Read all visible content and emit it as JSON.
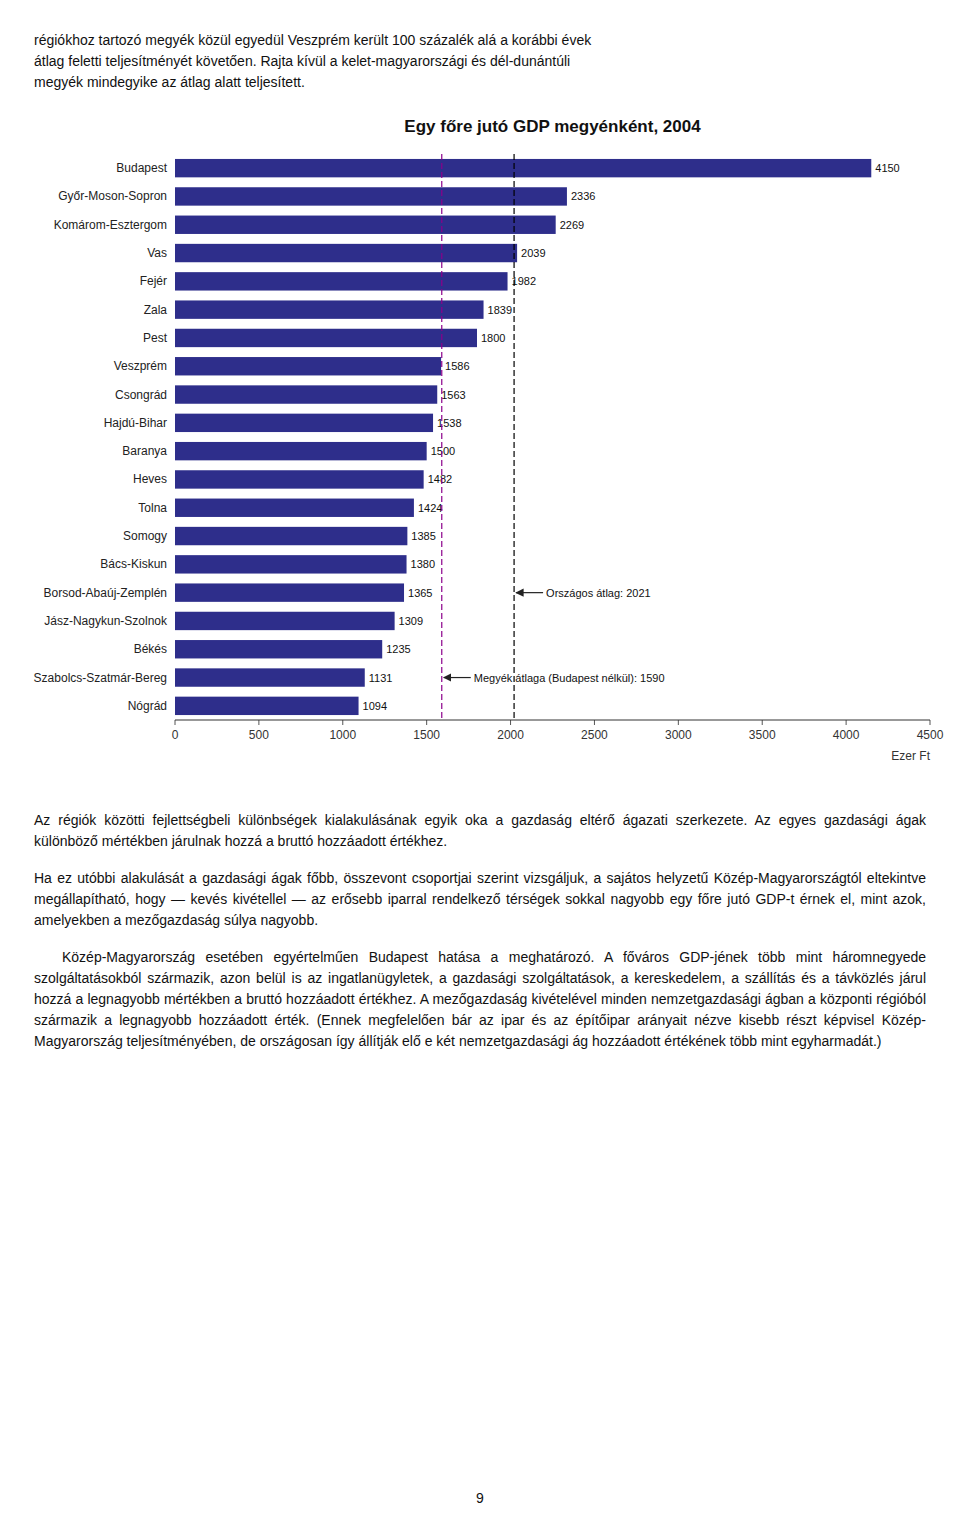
{
  "chart_data": {
    "type": "bar",
    "orientation": "horizontal",
    "title": "Egy főre jutó GDP megyénként, 2004",
    "categories": [
      "Budapest",
      "Győr-Moson-Sopron",
      "Komárom-Esztergom",
      "Vas",
      "Fejér",
      "Zala",
      "Pest",
      "Veszprém",
      "Csongrád",
      "Hajdú-Bihar",
      "Baranya",
      "Heves",
      "Tolna",
      "Somogy",
      "Bács-Kiskun",
      "Borsod-Abaúj-Zemplén",
      "Jász-Nagykun-Szolnok",
      "Békés",
      "Szabolcs-Szatmár-Bereg",
      "Nógrád"
    ],
    "values": [
      4150,
      2336,
      2269,
      2039,
      1982,
      1839,
      1800,
      1586,
      1563,
      1538,
      1500,
      1482,
      1424,
      1385,
      1380,
      1365,
      1309,
      1235,
      1131,
      1094
    ],
    "color": "#2E2E8B",
    "data_labels": true,
    "grid": false,
    "xlabel": "Ezer Ft",
    "xlim": [
      0,
      4500
    ],
    "xticks": [
      0,
      500,
      1000,
      1500,
      2000,
      2500,
      3000,
      3500,
      4000,
      4500
    ],
    "annotations": [
      {
        "text": "Országos átlag: 2021",
        "x": 2021,
        "category": "Borsod-Abaúj-Zemplén",
        "color": "#000000"
      },
      {
        "text": "Megyék átlaga (Budapest nélkül): 1590",
        "x": 1590,
        "category": "Szabolcs-Szatmár-Bereg",
        "color": "#8B008B"
      }
    ]
  },
  "top_text": "régiókhoz tartozó megyék közül egyedül Veszprém került 100 százalék alá a korábbi évek\nátlag feletti teljesítményét követően. Rajta kívül a kelet-magyarországi és dél-dunántúli\nmegyék mindegyike az átlag alatt teljesített.",
  "bottom_text_paragraphs": [
    "Az régiók közötti fejlettségbeli különbségek kialakulásának egyik oka a gazdaság eltérő ágazati szerkezete. Az egyes gazdasági ágak különböző mértékben járulnak hozzá a bruttó hozzáadott értékhez.",
    "Ha ez utóbbi alakulását a gazdasági ágak főbb, összevont csoportjai szerint vizsgáljuk, a sajátos helyzetű Közép-Magyarországtól eltekintve megállapítható, hogy — kevés kivétellel — az erősebb iparral rendelkező térségek sokkal nagyobb egy főre jutó GDP-t érnek el, mint azok, amelyekben a mezőgazdaság súlya nagyobb.",
    "Közép-Magyarország esetében egyértelműen Budapest hatása a meghatározó. A főváros GDP-jének több mint háromnegyede szolgáltatásokból származik, azon belül is az ingatlanügyletek, a gazdasági szolgáltatások, a kereskedelem, a szállítás és a távközlés járul hozzá a legnagyobb mértékben a bruttó hozzáadott értékhez. A mezőgazdaság kivételével minden nemzetgazdasági ágban a központi régióból származik a legnagyobb hozzáadott érték. (Ennek megfelelően bár az ipar és az építőipar arányait nézve kisebb részt képvisel Közép-Magyarország teljesítményében, de országosan így állítják elő e két nemzetgazdasági ág hozzáadott értékének több mint egyharmadát.)"
  ],
  "page_number": "9"
}
